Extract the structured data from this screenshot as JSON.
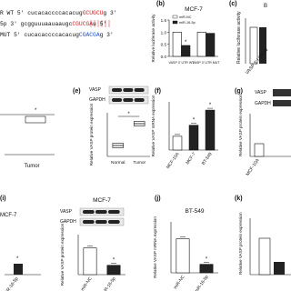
{
  "sequences": [
    [
      {
        "text": "R WT  5' cucacaccccacacug",
        "color": "#111111"
      },
      {
        "text": "GCUGCU",
        "color": "#d62020"
      },
      {
        "text": "g 3'",
        "color": "#111111"
      }
    ],
    [
      {
        "text": "5p    3' gcgguuuaauaaugc",
        "color": "#111111"
      },
      {
        "text": "CGUCGA",
        "color": "#d62020"
      },
      {
        "text": "u 5'",
        "color": "#111111"
      }
    ],
    [
      {
        "text": "MUT   5' cucacaccccacacug",
        "color": "#111111"
      },
      {
        "text": "CGACGA",
        "color": "#2050d0"
      },
      {
        "text": "g 3'",
        "color": "#111111"
      }
    ]
  ],
  "fragments": [
    "(c)",
    "B",
    "Relative luciferase activity",
    "VASP 3' UTR W",
    "Tumor",
    "(g)",
    "VASP",
    "GAPDH",
    "Relative VASP protein expression",
    "MCF-10A",
    "(i)",
    "MCF-7",
    "miR-16-5p",
    "(k)",
    "Relative VASP protein expression"
  ],
  "chart_data": [
    {
      "type": "bar",
      "panel": "(b)",
      "title": "MCF-7",
      "ylabel": "Relative luciferase activity",
      "categories": [
        "VASP 3' UTR WT",
        "VASP 3' UTR MUT"
      ],
      "series": [
        {
          "name": "miR-NC",
          "color": "#ffffff",
          "values": [
            1.0,
            1.0
          ]
        },
        {
          "name": "miR-16-5p",
          "color": "#222222",
          "values": [
            0.45,
            0.95
          ]
        }
      ],
      "ylim": [
        0,
        1.5
      ],
      "yticks": [
        {
          "value": 0,
          "label": "0.0"
        },
        {
          "value": 0.5,
          "label": "0.5"
        },
        {
          "value": 1,
          "label": "1.0"
        },
        {
          "value": 1.5,
          "label": "1.5"
        }
      ],
      "annotation": "*"
    },
    {
      "type": "box",
      "panel": "(e)",
      "ylabel": "Relative VASP protein expression",
      "blot": [
        "VASP",
        "GAPDH"
      ],
      "categories": [
        "Normal",
        "Tumor"
      ],
      "values": [
        1.0,
        3.0
      ],
      "ylim": [
        0,
        4
      ],
      "annotation": "*"
    },
    {
      "type": "bar",
      "panel": "(f)",
      "ylabel": "Relative VASP mRNA expression",
      "categories": [
        "MCF-10A",
        "MCF-7",
        "BT-549"
      ],
      "values": [
        1.0,
        1.8,
        2.9
      ],
      "colors": [
        "#ffffff",
        "#222222",
        "#222222"
      ],
      "ylim": [
        0,
        3.5
      ],
      "annotation": "*"
    },
    {
      "type": "bar",
      "title": "MCF-7",
      "ylabel": "Relative VASP protein expression",
      "blot": [
        "VASP",
        "GAPDH"
      ],
      "categories": [
        "miR-NC",
        "miR-16-5p"
      ],
      "values": [
        1.0,
        0.35
      ],
      "colors": [
        "#ffffff",
        "#222222"
      ],
      "ylim": [
        0,
        1.5
      ],
      "annotation": "*"
    },
    {
      "type": "bar",
      "panel": "(j)",
      "title": "BT-549",
      "ylabel": "Relative VASP mRNA expression",
      "categories": [
        "miR-NC",
        "miR-16-5p"
      ],
      "values": [
        1.0,
        0.25
      ],
      "colors": [
        "#ffffff",
        "#222222"
      ],
      "ylim": [
        0,
        1.5
      ],
      "annotation": "*"
    }
  ]
}
